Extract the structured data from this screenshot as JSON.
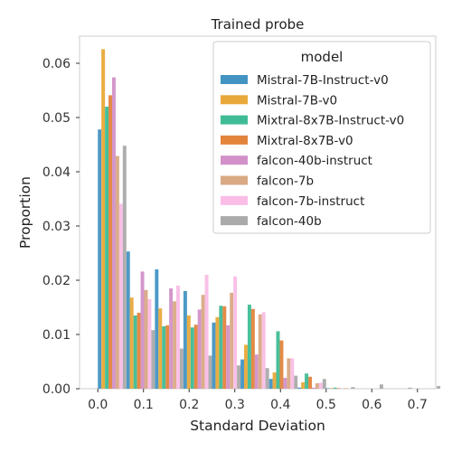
{
  "chart_data": {
    "type": "bar",
    "title": "Trained probe",
    "xlabel": "Standard Deviation",
    "ylabel": "Proportion",
    "xlim": [
      -0.04,
      0.74
    ],
    "ylim": [
      0,
      0.065
    ],
    "x_ticks": [
      "0.0",
      "0.1",
      "0.2",
      "0.3",
      "0.4",
      "0.5",
      "0.6",
      "0.7"
    ],
    "y_ticks": [
      "0.00",
      "0.01",
      "0.02",
      "0.03",
      "0.04",
      "0.05",
      "0.06"
    ],
    "grid": false,
    "legend_title": "model",
    "legend_position": "top-right",
    "bin_starts": [
      0.0,
      0.0625,
      0.125,
      0.1875,
      0.25,
      0.3125,
      0.375,
      0.4375,
      0.5,
      0.5625,
      0.625,
      0.6875
    ],
    "bin_width": 0.0625,
    "series": [
      {
        "name": "Mistral-7B-Instruct-v0",
        "color": "#4393c3",
        "values": [
          0.0478,
          0.0253,
          0.022,
          0.018,
          0.0122,
          0.0054,
          0.0018,
          0.0002,
          0.0001,
          0.0,
          0.0,
          0.0
        ]
      },
      {
        "name": "Mistral-7B-v0",
        "color": "#e8a93a",
        "values": [
          0.0626,
          0.0168,
          0.0148,
          0.0135,
          0.0132,
          0.0081,
          0.003,
          0.0012,
          0.0001,
          0.0,
          0.0,
          0.0
        ]
      },
      {
        "name": "Mixtral-8x7B-Instruct-v0",
        "color": "#3fbc95",
        "values": [
          0.052,
          0.0135,
          0.0115,
          0.0113,
          0.0153,
          0.0155,
          0.0106,
          0.0028,
          0.0002,
          0.0,
          0.0,
          0.0
        ]
      },
      {
        "name": "Mixtral-8x7B-v0",
        "color": "#e3843c",
        "values": [
          0.0541,
          0.014,
          0.0117,
          0.0118,
          0.0152,
          0.0147,
          0.0089,
          0.0022,
          0.0001,
          0.0,
          0.0,
          0.0
        ]
      },
      {
        "name": "falcon-40b-instruct",
        "color": "#d291c8",
        "values": [
          0.0574,
          0.0216,
          0.0185,
          0.0146,
          0.0117,
          0.0063,
          0.002,
          0.0002,
          0.0,
          0.0,
          0.0,
          0.0
        ]
      },
      {
        "name": "falcon-7b",
        "color": "#d9a984",
        "values": [
          0.0429,
          0.0182,
          0.0161,
          0.0173,
          0.0177,
          0.0137,
          0.0056,
          0.001,
          0.0001,
          0.0,
          0.0,
          0.0
        ]
      },
      {
        "name": "falcon-7b-instruct",
        "color": "#f9bde6",
        "values": [
          0.0341,
          0.0165,
          0.019,
          0.021,
          0.0207,
          0.0141,
          0.0056,
          0.0011,
          0.0,
          0.0,
          0.0,
          0.0
        ]
      },
      {
        "name": "falcon-40b",
        "color": "#aaaaaa",
        "values": [
          0.0448,
          0.0108,
          0.0074,
          0.0061,
          0.0043,
          0.0038,
          0.0024,
          0.0018,
          0.0003,
          0.0008,
          0.0002,
          0.0005
        ]
      }
    ]
  }
}
